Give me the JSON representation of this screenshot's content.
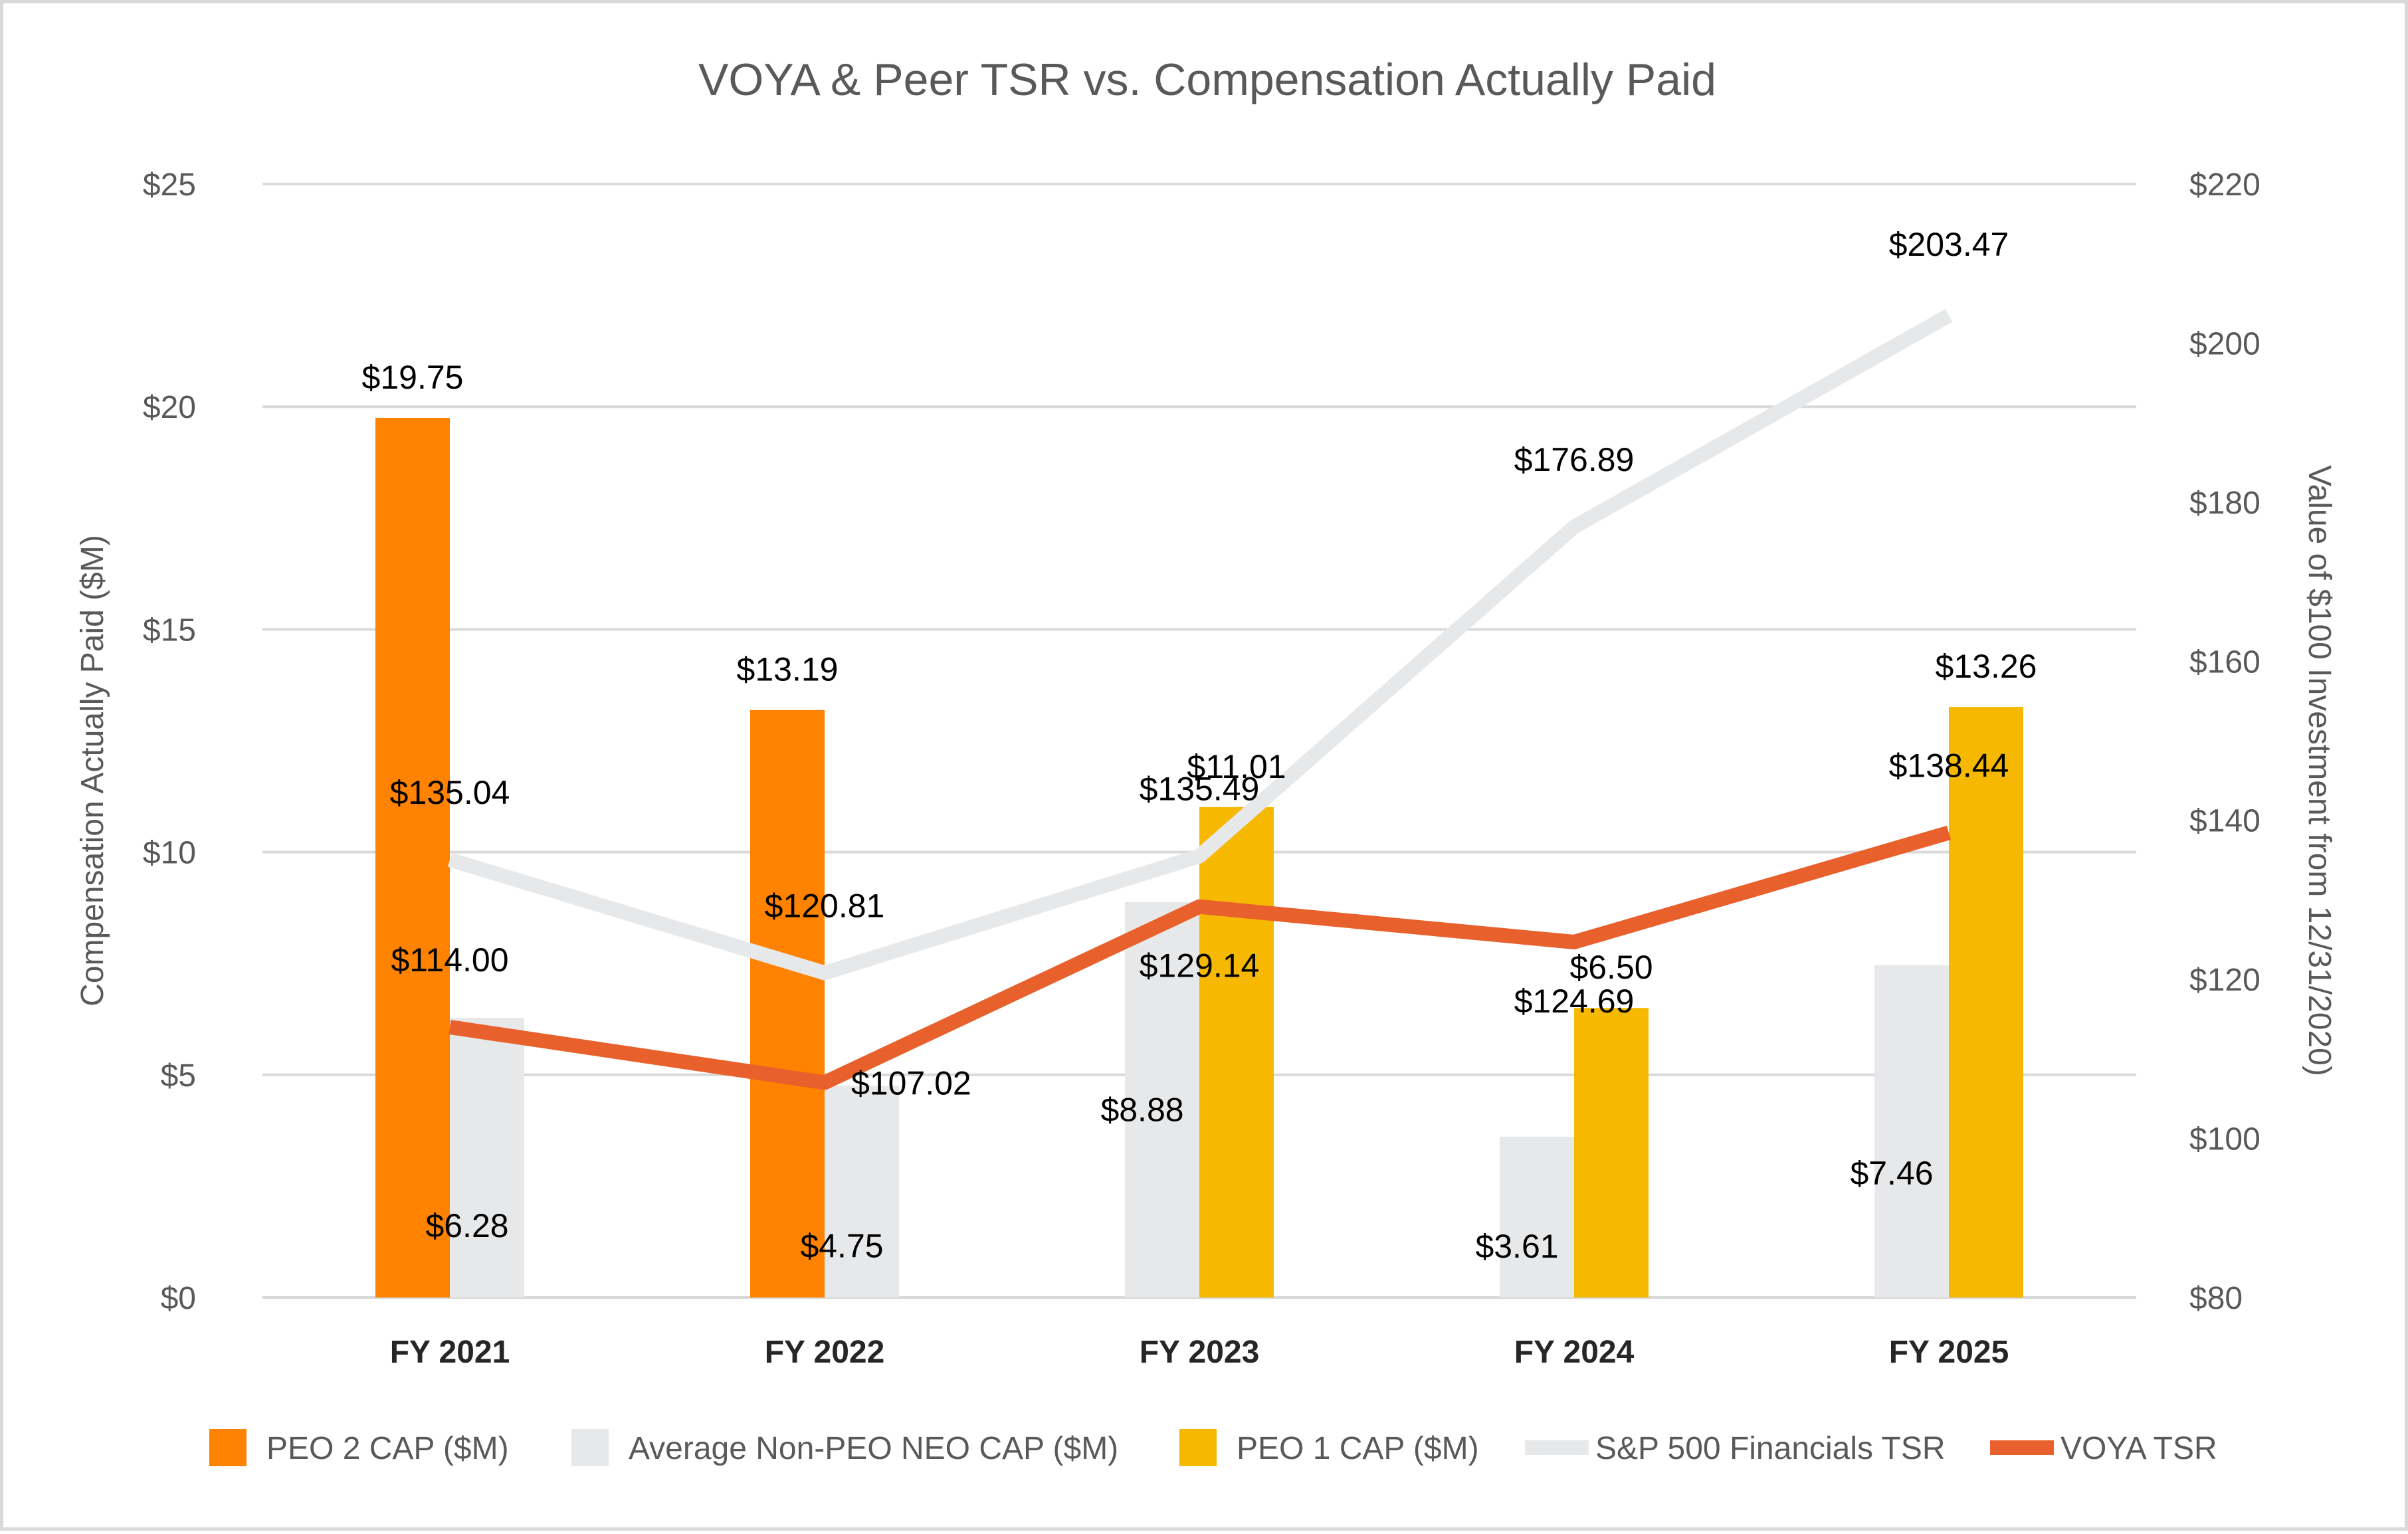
{
  "chart_data": {
    "type": "bar",
    "title": "VOYA & Peer TSR vs. Compensation Actually Paid",
    "categories": [
      "FY 2021",
      "FY 2022",
      "FY 2023",
      "FY 2024",
      "FY 2025"
    ],
    "y_left": {
      "label": "Compensation Actually Paid ($M)",
      "range": [
        0,
        25
      ],
      "ticks": [
        0,
        5,
        10,
        15,
        20,
        25
      ],
      "tick_labels": [
        "$0",
        "$5",
        "$10",
        "$15",
        "$20",
        "$25"
      ]
    },
    "y_right": {
      "label": "Value of $100 Investment from 12/31/2020)",
      "range": [
        80,
        220
      ],
      "ticks": [
        80,
        100,
        120,
        140,
        160,
        180,
        200,
        220
      ],
      "tick_labels": [
        "$80",
        "$100",
        "$120",
        "$140",
        "$160",
        "$180",
        "$200",
        "$220"
      ]
    },
    "grid": true,
    "legend_position": "bottom",
    "series": [
      {
        "name": "PEO 2 CAP ($M)",
        "kind": "bar",
        "axis": "left",
        "color": "#FF8200",
        "values": [
          19.75,
          13.19,
          null,
          null,
          null
        ],
        "labels": [
          "$19.75",
          "$13.19",
          "",
          "",
          ""
        ]
      },
      {
        "name": "Average Non-PEO NEO CAP ($M)",
        "kind": "bar",
        "axis": "left",
        "color": "#E7E8EA",
        "values": [
          6.28,
          4.75,
          8.88,
          3.61,
          7.46
        ],
        "labels": [
          "$6.28",
          "$4.75",
          "$8.88",
          "$3.61",
          "$7.46"
        ]
      },
      {
        "name": "PEO 1 CAP ($M)",
        "kind": "bar",
        "axis": "left",
        "color": "#F6B800",
        "values": [
          null,
          null,
          11.01,
          6.5,
          13.26
        ],
        "labels": [
          "",
          "",
          "$11.01",
          "$6.50",
          "$13.26"
        ]
      },
      {
        "name": "S&P 500 Financials TSR",
        "kind": "line",
        "axis": "right",
        "color": "#E7E8EA",
        "values": [
          135.04,
          120.81,
          135.49,
          176.89,
          203.47
        ],
        "labels": [
          "$135.04",
          "$120.81",
          "$135.49",
          "$176.89",
          "$203.47"
        ]
      },
      {
        "name": "VOYA TSR",
        "kind": "line",
        "axis": "right",
        "color": "#E8612C",
        "values": [
          114.0,
          107.02,
          129.14,
          124.69,
          138.44
        ],
        "labels": [
          "$114.00",
          "$107.02",
          "$129.14",
          "$124.69",
          "$138.44"
        ]
      }
    ]
  }
}
